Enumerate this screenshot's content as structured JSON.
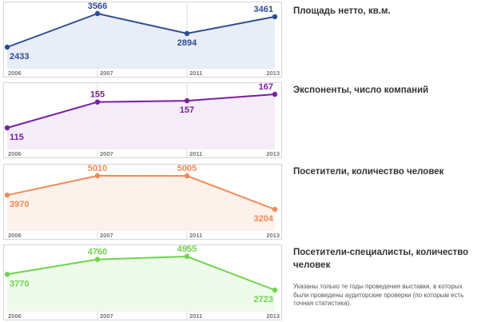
{
  "chart_data": [
    {
      "type": "area",
      "title": "Площадь нетто, кв.м.",
      "x": [
        "2006",
        "2007",
        "2011",
        "2013"
      ],
      "values": [
        2433,
        3566,
        2894,
        3461
      ],
      "value_labels": [
        "2433",
        "3566",
        "2894",
        "3461"
      ],
      "label_positions": [
        "below",
        "above",
        "below",
        "above"
      ],
      "color": "#2e4d94",
      "fill": "#e8edf6"
    },
    {
      "type": "area",
      "title": "Экспоненты, число компаний",
      "x": [
        "2006",
        "2007",
        "2011",
        "2013"
      ],
      "values": [
        115,
        155,
        157,
        167
      ],
      "value_labels": [
        "115",
        "155",
        "157",
        "167"
      ],
      "label_positions": [
        "below",
        "above",
        "below",
        "above"
      ],
      "color": "#7a1fa2",
      "fill": "#f4edf7"
    },
    {
      "type": "area",
      "title": "Посетители, количество человек",
      "x": [
        "2006",
        "2007",
        "2011",
        "2013"
      ],
      "values": [
        3970,
        5010,
        5005,
        3204
      ],
      "value_labels": [
        "3970",
        "5010",
        "5005",
        "3204"
      ],
      "label_positions": [
        "below",
        "above",
        "above",
        "below"
      ],
      "color": "#f08a55",
      "fill": "#fdf1ec"
    },
    {
      "type": "area",
      "title": "Посетители-специалисты, количество человек",
      "x": [
        "2006",
        "2007",
        "2011",
        "2013"
      ],
      "values": [
        3770,
        4760,
        4955,
        2723
      ],
      "value_labels": [
        "3770",
        "4760",
        "4955",
        "2723"
      ],
      "label_positions": [
        "below",
        "above",
        "above",
        "below"
      ],
      "color": "#6ed44a",
      "fill": "#eefaeb"
    }
  ],
  "footnote": "Указаны только те годы проведения выставки, в которых были проведены аудиторские проверки (по которым есть точная статистика)."
}
